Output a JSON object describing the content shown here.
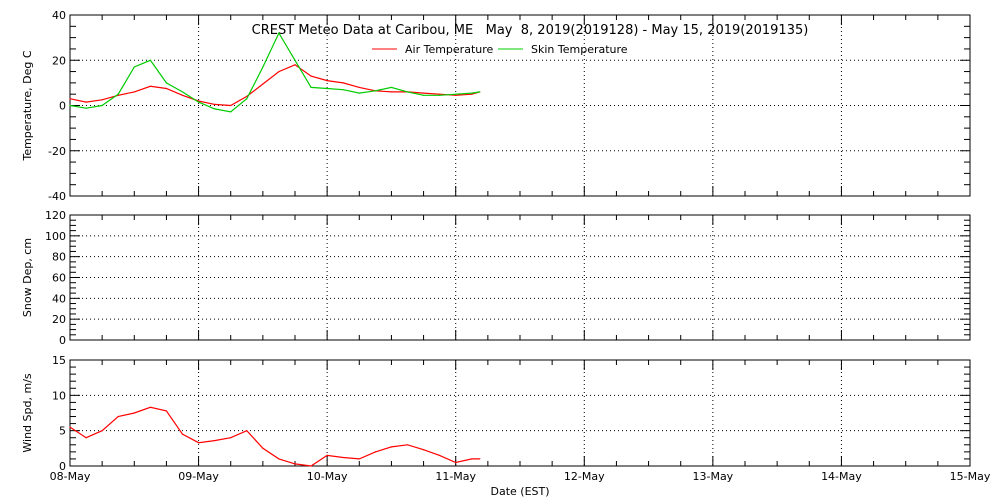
{
  "chart_data": [
    {
      "type": "line",
      "title": "CREST Meteo Data at Caribou, ME   May  8, 2019(2019128) - May 15, 2019(2019135)",
      "ylabel": "Temperature, Deg C",
      "ylim": [
        -40,
        40
      ],
      "yticks": [
        "40",
        "20",
        "0",
        "-20",
        "-40"
      ],
      "grid": true,
      "legend": "top-center",
      "x": [
        "05-08 00:00",
        "05-08 03:00",
        "05-08 06:00",
        "05-08 09:00",
        "05-08 12:00",
        "05-08 15:00",
        "05-08 18:00",
        "05-08 21:00",
        "05-09 00:00",
        "05-09 03:00",
        "05-09 06:00",
        "05-09 09:00",
        "05-09 12:00",
        "05-09 15:00",
        "05-09 18:00",
        "05-09 21:00",
        "05-10 00:00",
        "05-10 03:00",
        "05-10 06:00",
        "05-10 09:00",
        "05-10 12:00",
        "05-10 15:00",
        "05-10 18:00",
        "05-10 21:00",
        "05-11 00:00",
        "05-11 03:00",
        "05-11 04:30"
      ],
      "series": [
        {
          "name": "Air Temperature",
          "color": "#ff0000",
          "values": [
            3,
            1.5,
            2.5,
            4.5,
            6,
            8.5,
            7.5,
            4.5,
            2,
            0.5,
            0,
            4,
            9.5,
            15,
            18,
            13,
            11,
            10,
            8,
            6.5,
            6,
            6,
            5.5,
            5,
            4.5,
            5,
            6
          ]
        },
        {
          "name": "Skin Temperature",
          "color": "#00cc00",
          "values": [
            0,
            -1.2,
            0,
            5,
            17,
            20,
            10,
            6,
            1.5,
            -1.5,
            -2.8,
            3,
            17,
            32,
            20,
            8,
            7.5,
            7,
            5.5,
            6.5,
            8,
            6,
            4.5,
            4.5,
            5,
            5.5,
            6
          ]
        }
      ]
    },
    {
      "type": "line",
      "ylabel": "Snow Dep, cm",
      "ylim": [
        0,
        120
      ],
      "yticks": [
        "120",
        "100",
        "80",
        "60",
        "40",
        "20",
        "0"
      ],
      "grid": true,
      "series": []
    },
    {
      "type": "line",
      "ylabel": "Wind Spd, m/s",
      "xlabel": "Date (EST)",
      "ylim": [
        0,
        15
      ],
      "yticks": [
        "15",
        "10",
        "5",
        "0"
      ],
      "xticks": [
        "08-May",
        "09-May",
        "10-May",
        "11-May",
        "12-May",
        "13-May",
        "14-May",
        "15-May"
      ],
      "xlim": [
        "05-08 00:00",
        "05-15 00:00"
      ],
      "grid": true,
      "series": [
        {
          "color": "#ff0000",
          "values": [
            5.5,
            4,
            5,
            7,
            7.5,
            8.3,
            7.8,
            4.5,
            3.3,
            3.6,
            4,
            5,
            2.5,
            1,
            0.3,
            0,
            1.5,
            1.2,
            1,
            2,
            2.7,
            3,
            2.3,
            1.5,
            0.5,
            1,
            1
          ]
        }
      ]
    }
  ]
}
